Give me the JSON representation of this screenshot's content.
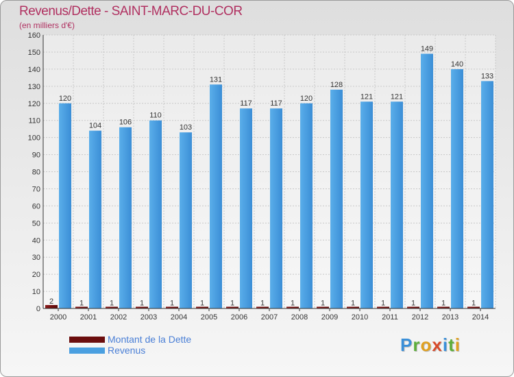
{
  "title": "Revenus/Dette - SAINT-MARC-DU-COR",
  "subtitle": "(en milliers d'€)",
  "logo": "Proxiti",
  "colors": {
    "title": "#b03060",
    "revenus": "#4a9fe0",
    "dette": "#6b0d0d",
    "legend_text": "#4a7fd6"
  },
  "chart_data": {
    "type": "bar",
    "categories": [
      "2000",
      "2001",
      "2002",
      "2003",
      "2004",
      "2005",
      "2006",
      "2007",
      "2008",
      "2009",
      "2010",
      "2011",
      "2012",
      "2013",
      "2014"
    ],
    "series": [
      {
        "name": "Montant de la Dette",
        "values": [
          2,
          1,
          1,
          1,
          1,
          1,
          1,
          1,
          1,
          1,
          1,
          1,
          1,
          1,
          1
        ]
      },
      {
        "name": "Revenus",
        "values": [
          120,
          104,
          106,
          110,
          103,
          131,
          117,
          117,
          120,
          128,
          121,
          121,
          149,
          140,
          133
        ]
      }
    ],
    "ylim": [
      0,
      160
    ],
    "yticks": [
      0,
      10,
      20,
      30,
      40,
      50,
      60,
      70,
      80,
      90,
      100,
      110,
      120,
      130,
      140,
      150,
      160
    ],
    "grid": true,
    "legend_position": "bottom-left"
  }
}
